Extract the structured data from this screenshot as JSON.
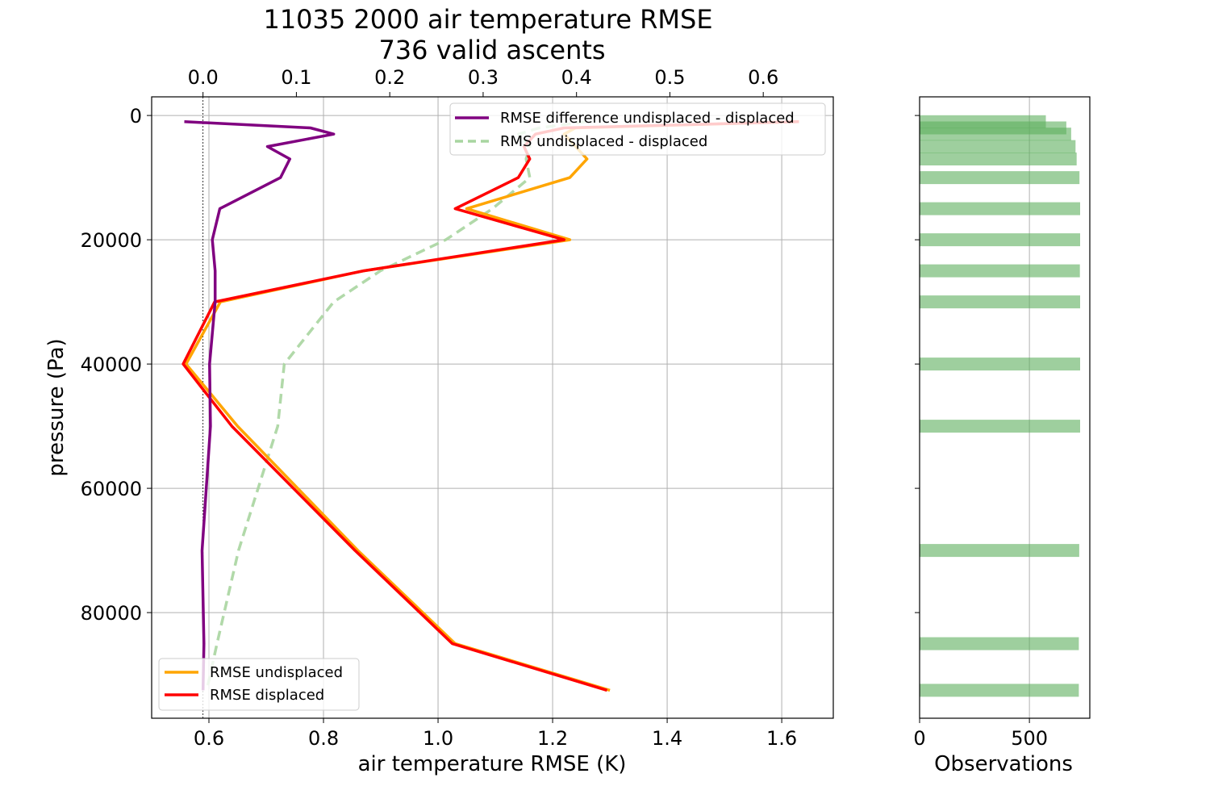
{
  "chart_data": {
    "type": "line",
    "title": "11035 2000 air temperature RMSE",
    "subtitle": "736 valid ascents",
    "xlabel": "air temperature RMSE (K)",
    "ylabel": "pressure (Pa)",
    "xlim": [
      0.5,
      1.69
    ],
    "ylim": [
      97000,
      -3000
    ],
    "y_inverted": true,
    "grid": true,
    "xticks": [
      "0.6",
      "0.8",
      "1.0",
      "1.2",
      "1.4",
      "1.6"
    ],
    "yticks": [
      "0",
      "20000",
      "40000",
      "60000",
      "80000"
    ],
    "top_axis": {
      "xlim": [
        -0.055,
        0.675
      ],
      "xticks": [
        "0.0",
        "0.1",
        "0.2",
        "0.3",
        "0.4",
        "0.5",
        "0.6"
      ]
    },
    "pressure_levels": [
      1000,
      2000,
      3000,
      5000,
      7000,
      10000,
      15000,
      20000,
      25000,
      30000,
      40000,
      50000,
      70000,
      85000,
      92500
    ],
    "series": [
      {
        "name": "RMSE undisplaced",
        "axis": "bottom",
        "color": "#FFA500",
        "x": [
          1.63,
          1.24,
          1.22,
          1.24,
          1.26,
          1.23,
          1.05,
          1.23,
          0.87,
          0.62,
          0.56,
          0.65,
          0.86,
          1.03,
          1.3
        ],
        "y": [
          1000,
          2000,
          3000,
          5000,
          7000,
          10000,
          15000,
          20000,
          25000,
          30000,
          40000,
          50000,
          70000,
          85000,
          92500
        ]
      },
      {
        "name": "RMSE displaced",
        "axis": "bottom",
        "color": "#FF0000",
        "x": [
          1.63,
          1.22,
          1.17,
          1.15,
          1.16,
          1.14,
          1.03,
          1.22,
          0.87,
          0.61,
          0.555,
          0.64,
          0.855,
          1.025,
          1.295
        ],
        "y": [
          1000,
          2000,
          3000,
          5000,
          7000,
          10000,
          15000,
          20000,
          25000,
          30000,
          40000,
          50000,
          70000,
          85000,
          92500
        ]
      },
      {
        "name": "RMSE difference undisplaced - displaced",
        "axis": "top",
        "color": "#800080",
        "x": [
          -0.02,
          0.115,
          0.14,
          0.069,
          0.093,
          0.083,
          0.018,
          0.01,
          0.013,
          0.013,
          0.007,
          0.008,
          -0.001,
          0.001,
          0.0
        ],
        "y": [
          1000,
          2000,
          3000,
          5000,
          7000,
          10000,
          15000,
          20000,
          25000,
          30000,
          40000,
          50000,
          70000,
          85000,
          92500
        ]
      },
      {
        "name": "RMS undisplaced - displaced",
        "axis": "top",
        "color": "#A8D5A0",
        "dashed": true,
        "x": [
          0.41,
          0.36,
          0.338,
          0.35,
          0.346,
          0.35,
          0.31,
          0.26,
          0.19,
          0.14,
          0.087,
          0.08,
          0.038,
          0.015,
          0.004
        ],
        "y": [
          1000,
          2000,
          3000,
          5000,
          7000,
          10000,
          15000,
          20000,
          25000,
          30000,
          40000,
          50000,
          70000,
          85000,
          92500
        ]
      }
    ],
    "observations_panel": {
      "xlabel": "Observations",
      "xlim": [
        0,
        775
      ],
      "xticks": [
        "0",
        "500"
      ],
      "bar_color": "#5DAF5D",
      "bars": [
        {
          "pressure": 1000,
          "value": 575
        },
        {
          "pressure": 2000,
          "value": 668
        },
        {
          "pressure": 3000,
          "value": 690
        },
        {
          "pressure": 5000,
          "value": 710
        },
        {
          "pressure": 7000,
          "value": 715
        },
        {
          "pressure": 10000,
          "value": 728
        },
        {
          "pressure": 15000,
          "value": 731
        },
        {
          "pressure": 20000,
          "value": 731
        },
        {
          "pressure": 25000,
          "value": 730
        },
        {
          "pressure": 30000,
          "value": 731
        },
        {
          "pressure": 40000,
          "value": 731
        },
        {
          "pressure": 50000,
          "value": 731
        },
        {
          "pressure": 70000,
          "value": 727
        },
        {
          "pressure": 85000,
          "value": 725
        },
        {
          "pressure": 92500,
          "value": 725
        }
      ]
    },
    "legends": [
      {
        "placement": "top-right",
        "entries": [
          "RMSE difference undisplaced - displaced",
          "RMS undisplaced - displaced"
        ]
      },
      {
        "placement": "bottom-left",
        "entries": [
          "RMSE undisplaced",
          "RMSE displaced"
        ]
      }
    ]
  }
}
